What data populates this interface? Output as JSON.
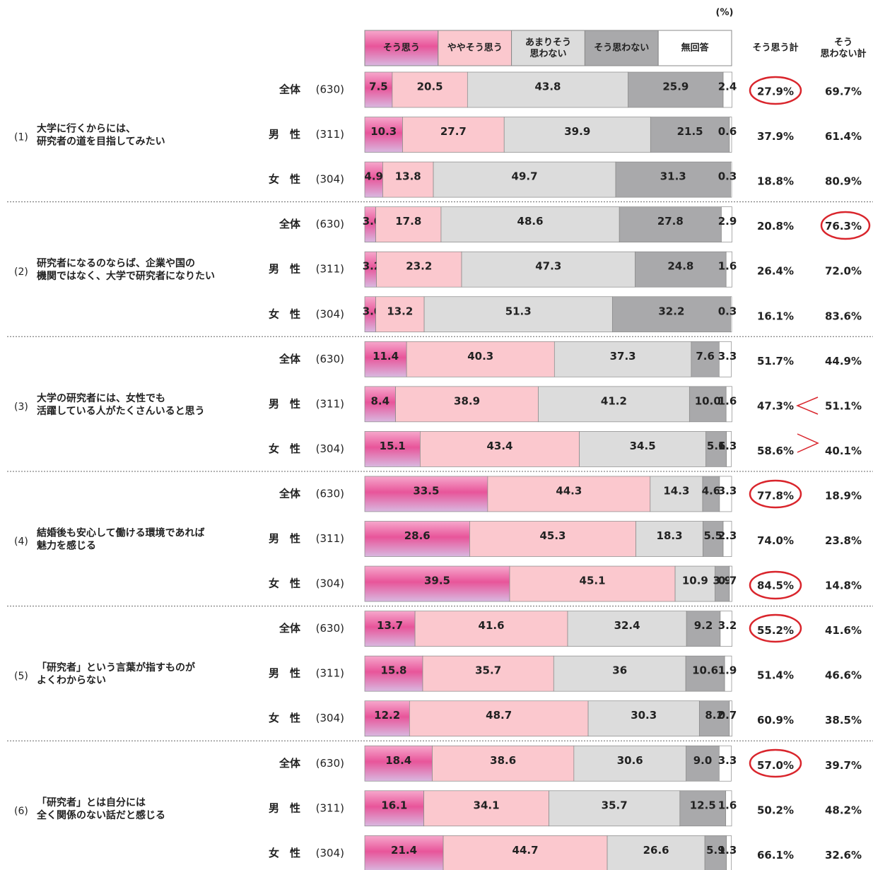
{
  "chart_data": {
    "type": "stacked_bar_h",
    "unit": "(%)",
    "xlim": [
      0,
      100
    ],
    "questions": [
      {
        "number": "(1)",
        "lines": [
          "大学に行くからには、",
          "研究者の道を目指してみたい"
        ]
      },
      {
        "number": "(2)",
        "lines": [
          "研究者になるのならば、企業や国の",
          "機関ではなく、大学で研究者になりたい"
        ]
      },
      {
        "number": "(3)",
        "lines": [
          "大学の研究者には、女性でも",
          "活躍している人がたくさんいると思う"
        ]
      },
      {
        "number": "(4)",
        "lines": [
          "結婚後も安心して働ける環境であれば",
          "魅力を感じる"
        ]
      },
      {
        "number": "(5)",
        "lines": [
          "「研究者」という言葉が指すものが",
          "よくわからない"
        ]
      },
      {
        "number": "(6)",
        "lines": [
          "「研究者」とは自分には",
          "全く関係のない話だと感じる"
        ]
      }
    ],
    "categories": [
      "全体",
      "男　性",
      "女　性",
      "全体",
      "男　性",
      "女　性",
      "全体",
      "男　性",
      "女　性",
      "全体",
      "男　性",
      "女　性",
      "全体",
      "男　性",
      "女　性",
      "全体",
      "男　性",
      "女　性"
    ],
    "sample_sizes": [
      "(630)",
      "(311)",
      "(304)",
      "(630)",
      "(311)",
      "(304)",
      "(630)",
      "(311)",
      "(304)",
      "(630)",
      "(311)",
      "(304)",
      "(630)",
      "(311)",
      "(304)",
      "(630)",
      "(311)",
      "(304)"
    ],
    "series": [
      {
        "name": "そう思う",
        "color": "#e8559a",
        "values": [
          7.5,
          10.3,
          4.9,
          3.0,
          3.2,
          3.0,
          11.4,
          8.4,
          15.1,
          33.5,
          28.6,
          39.5,
          13.7,
          15.8,
          12.2,
          18.4,
          16.1,
          21.4
        ],
        "value_labels": [
          "7.5",
          "10.3",
          "4.9",
          "3.0",
          "3.2",
          "3.0",
          "11.4",
          "8.4",
          "15.1",
          "33.5",
          "28.6",
          "39.5",
          "13.7",
          "15.8",
          "12.2",
          "18.4",
          "16.1",
          "21.4"
        ]
      },
      {
        "name": "ややそう思う",
        "color": "#fbc8ce",
        "values": [
          20.5,
          27.7,
          13.8,
          17.8,
          23.2,
          13.2,
          40.3,
          38.9,
          43.4,
          44.3,
          45.3,
          45.1,
          41.6,
          35.7,
          48.7,
          38.6,
          34.1,
          44.7
        ]
      },
      {
        "name": "あまりそう\n思わない",
        "color": "#dcdcdc",
        "values": [
          43.8,
          39.9,
          49.7,
          48.6,
          47.3,
          51.3,
          37.3,
          41.2,
          34.5,
          14.3,
          18.3,
          10.9,
          32.4,
          36.0,
          30.3,
          30.6,
          35.7,
          26.6
        ]
      },
      {
        "name": "そう思わない",
        "color": "#a9a9ab",
        "values": [
          25.9,
          21.5,
          31.3,
          27.8,
          24.8,
          32.2,
          7.6,
          10.0,
          5.6,
          4.6,
          5.5,
          3.9,
          9.2,
          10.6,
          8.2,
          9.0,
          12.5,
          5.9
        ],
        "value_labels": [
          "25.9",
          "21.5",
          "31.3",
          "27.8",
          "24.8",
          "32.2",
          "7.6",
          "10.0",
          "5.6",
          "4.6",
          "5.5",
          "3.9",
          "9.2",
          "10.6",
          "8.2",
          "9.0",
          "12.5",
          "5.9"
        ]
      },
      {
        "name": "無回答",
        "color": "#ffffff",
        "values": [
          2.4,
          0.6,
          0.3,
          2.9,
          1.6,
          0.3,
          3.3,
          1.6,
          1.3,
          3.3,
          2.3,
          0.7,
          3.2,
          1.9,
          0.7,
          3.3,
          1.6,
          1.3
        ]
      }
    ],
    "totals": [
      {
        "name": "そう思う計",
        "values": [
          27.9,
          37.9,
          18.8,
          20.8,
          26.4,
          16.1,
          51.7,
          47.3,
          58.6,
          77.8,
          74.0,
          84.5,
          55.2,
          51.4,
          60.9,
          57.0,
          50.2,
          66.1
        ],
        "value_labels": [
          "27.9%",
          "37.9%",
          "18.8%",
          "20.8%",
          "26.4%",
          "16.1%",
          "51.7%",
          "47.3%",
          "58.6%",
          "77.8%",
          "74.0%",
          "84.5%",
          "55.2%",
          "51.4%",
          "60.9%",
          "57.0%",
          "50.2%",
          "66.1%"
        ]
      },
      {
        "name": "そう\n思わない計",
        "values": [
          69.7,
          61.4,
          80.9,
          76.3,
          72.0,
          83.6,
          44.9,
          51.1,
          40.1,
          18.9,
          23.8,
          14.8,
          41.6,
          46.6,
          38.5,
          39.7,
          48.2,
          32.6
        ],
        "value_labels": [
          "69.7%",
          "61.4%",
          "80.9%",
          "76.3%",
          "72.0%",
          "83.6%",
          "44.9%",
          "51.1%",
          "40.1%",
          "18.9%",
          "23.8%",
          "14.8%",
          "41.6%",
          "46.6%",
          "38.5%",
          "39.7%",
          "48.2%",
          "32.6%"
        ]
      }
    ]
  }
}
